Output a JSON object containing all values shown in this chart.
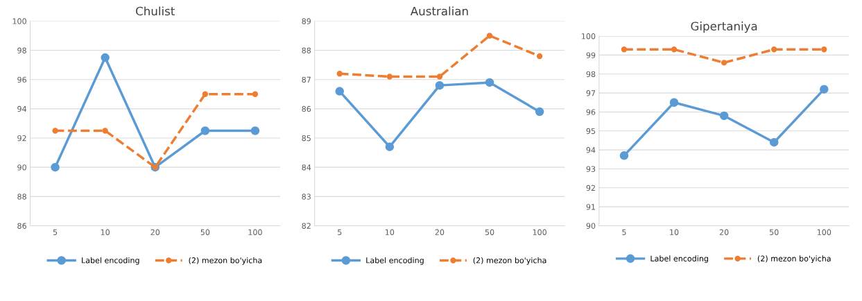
{
  "chart_data": [
    {
      "type": "line",
      "title": "Chulist",
      "categories": [
        "5",
        "10",
        "20",
        "50",
        "100"
      ],
      "ylim": [
        86,
        100
      ],
      "yticks": [
        86,
        88,
        90,
        92,
        94,
        96,
        98,
        100
      ],
      "grid": "y",
      "legend": "bottom",
      "marker": "circle",
      "series": [
        {
          "name": "Label encoding",
          "color": "#5b9bd5",
          "values": [
            90,
            97.5,
            90,
            92.5,
            92.5
          ],
          "line_style": "solid"
        },
        {
          "name": "(2) mezon bo'yicha",
          "color": "#ed7d31",
          "values": [
            92.5,
            92.5,
            90,
            95,
            95
          ],
          "line_style": "dashed"
        }
      ]
    },
    {
      "type": "line",
      "title": "Australian",
      "categories": [
        "5",
        "10",
        "20",
        "50",
        "100"
      ],
      "ylim": [
        82,
        89
      ],
      "yticks": [
        82,
        83,
        84,
        85,
        86,
        87,
        88,
        89
      ],
      "grid": "y",
      "legend": "bottom",
      "marker": "circle",
      "series": [
        {
          "name": "Label encoding",
          "color": "#5b9bd5",
          "values": [
            86.6,
            84.7,
            86.8,
            86.9,
            85.9
          ],
          "line_style": "solid"
        },
        {
          "name": "(2) mezon bo'yicha",
          "color": "#ed7d31",
          "values": [
            87.2,
            87.1,
            87.1,
            88.5,
            87.8
          ],
          "line_style": "dashed"
        }
      ]
    },
    {
      "type": "line",
      "title": "Gipertaniya",
      "categories": [
        "5",
        "10",
        "20",
        "50",
        "100"
      ],
      "ylim": [
        90,
        100
      ],
      "yticks": [
        90,
        91,
        92,
        93,
        94,
        95,
        96,
        97,
        98,
        99,
        100
      ],
      "grid": "y",
      "legend": "bottom",
      "marker": "circle",
      "series": [
        {
          "name": "Label encoding",
          "color": "#5b9bd5",
          "values": [
            93.7,
            96.5,
            95.8,
            94.4,
            97.2
          ],
          "line_style": "solid"
        },
        {
          "name": "(2) mezon bo'yicha",
          "color": "#ed7d31",
          "values": [
            99.3,
            99.3,
            98.6,
            99.3,
            99.3
          ],
          "line_style": "dashed"
        }
      ]
    }
  ]
}
